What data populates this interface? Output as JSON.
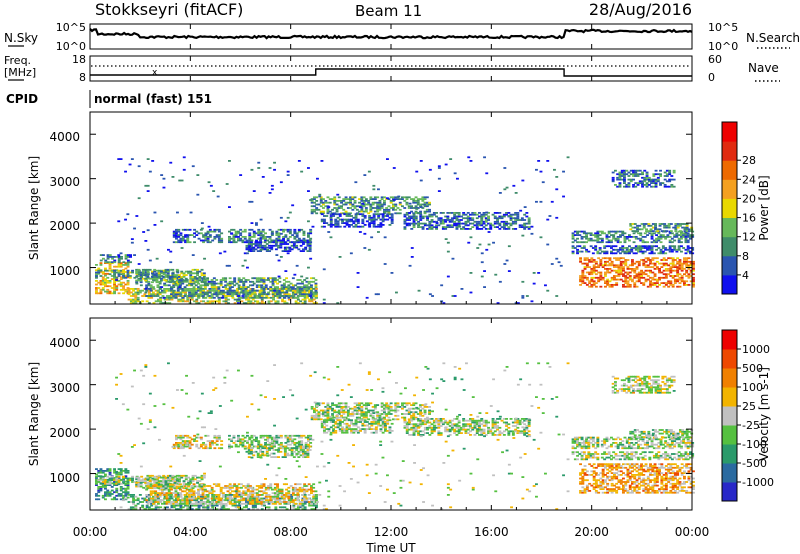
{
  "header": {
    "title": "Stokkseyri (fitACF)",
    "beam": "Beam 11",
    "date": "28/Aug/2016"
  },
  "nsky_panel": {
    "left_label": "N.Sky",
    "right_label": "N.Search",
    "left_ticks": [
      "10^5",
      "10^0"
    ],
    "right_ticks": [
      "10^5",
      "10^0"
    ]
  },
  "freq_panel": {
    "left_label_1": "Freq.",
    "left_label_2": "[MHz]",
    "right_label": "Nave",
    "left_ticks": [
      "18",
      "8"
    ],
    "right_ticks": [
      "60",
      "0"
    ]
  },
  "cpid": {
    "label": "CPID",
    "value": "normal (fast) 151"
  },
  "x_axis": {
    "label": "Time UT",
    "ticks": [
      "00:00",
      "04:00",
      "08:00",
      "12:00",
      "16:00",
      "20:00",
      "00:00"
    ]
  },
  "chart_data": [
    {
      "type": "heatmap",
      "panel": "power",
      "ylabel": "Slant Range [km]",
      "yticks": [
        "1000",
        "2000",
        "3000",
        "4000"
      ],
      "ylim": [
        180,
        4500
      ],
      "xlim": [
        0,
        24
      ],
      "colorbar": {
        "label": "Power [dB]",
        "ticks": [
          "4",
          "8",
          "12",
          "16",
          "20",
          "24",
          "28"
        ],
        "colors": [
          "#1010ee",
          "#2a55b0",
          "#3f8c6a",
          "#66b85a",
          "#e8d800",
          "#f4a020",
          "#ee6a00",
          "#e02a10",
          "#ee0000"
        ]
      },
      "bands": [
        {
          "t0": 0.2,
          "t1": 1.5,
          "r0": 400,
          "r1": 1100,
          "level": 0.55
        },
        {
          "t0": 0.2,
          "t1": 3.5,
          "r0": 750,
          "r1": 950,
          "level": 0.3
        },
        {
          "t0": 0.3,
          "t1": 1.6,
          "r0": 1100,
          "r1": 1300,
          "level": 0.25
        },
        {
          "t0": 1.5,
          "t1": 9.0,
          "r0": 180,
          "r1": 520,
          "level": 0.45
        },
        {
          "t0": 2.2,
          "t1": 9.0,
          "r0": 300,
          "r1": 750,
          "level": 0.3
        },
        {
          "t0": 1.8,
          "t1": 4.5,
          "r0": 650,
          "r1": 950,
          "level": 0.3
        },
        {
          "t0": 3.3,
          "t1": 5.2,
          "r0": 1550,
          "r1": 1850,
          "level": 0.2
        },
        {
          "t0": 5.5,
          "t1": 8.8,
          "r0": 1550,
          "r1": 1850,
          "level": 0.25
        },
        {
          "t0": 6.2,
          "t1": 8.8,
          "r0": 1350,
          "r1": 1600,
          "level": 0.15
        },
        {
          "t0": 8.8,
          "t1": 13.5,
          "r0": 2200,
          "r1": 2600,
          "level": 0.3
        },
        {
          "t0": 9.2,
          "t1": 12.0,
          "r0": 1900,
          "r1": 2200,
          "level": 0.15
        },
        {
          "t0": 12.5,
          "t1": 17.5,
          "r0": 1850,
          "r1": 2250,
          "level": 0.2
        },
        {
          "t0": 19.2,
          "t1": 24.0,
          "r0": 1550,
          "r1": 1800,
          "level": 0.25
        },
        {
          "t0": 19.2,
          "t1": 24.0,
          "r0": 1300,
          "r1": 1500,
          "level": 0.2
        },
        {
          "t0": 21.5,
          "t1": 24.0,
          "r0": 1800,
          "r1": 2000,
          "level": 0.3
        },
        {
          "t0": 20.8,
          "t1": 23.3,
          "r0": 2800,
          "r1": 3200,
          "level": 0.2
        },
        {
          "t0": 19.5,
          "t1": 24.0,
          "r0": 550,
          "r1": 1200,
          "level": 0.7
        },
        {
          "t0": 1.0,
          "t1": 19.0,
          "r0": 180,
          "r1": 3500,
          "level": 0.15,
          "sparse": true
        }
      ]
    },
    {
      "type": "heatmap",
      "panel": "velocity",
      "ylabel": "Slant Range [km]",
      "yticks": [
        "1000",
        "2000",
        "3000",
        "4000"
      ],
      "ylim": [
        180,
        4500
      ],
      "xlim": [
        0,
        24
      ],
      "colorbar": {
        "label": "Velocity [m s-1]",
        "ticks": [
          "1000",
          "500",
          "100",
          "25",
          "-25",
          "-100",
          "-500",
          "-1000"
        ],
        "colors": [
          "#2828c8",
          "#2a6aa0",
          "#2a9a6a",
          "#55c040",
          "#c0c0c0",
          "#f2b400",
          "#f08000",
          "#ee4800",
          "#ee0000"
        ]
      },
      "bands": [
        {
          "t0": 0.2,
          "t1": 1.5,
          "r0": 400,
          "r1": 1100,
          "level": 0.25
        },
        {
          "t0": 0.2,
          "t1": 3.5,
          "r0": 750,
          "r1": 950,
          "level": 0.45
        },
        {
          "t0": 1.5,
          "t1": 9.0,
          "r0": 180,
          "r1": 520,
          "level": 0.35
        },
        {
          "t0": 2.2,
          "t1": 9.0,
          "r0": 300,
          "r1": 750,
          "level": 0.55
        },
        {
          "t0": 1.8,
          "t1": 4.5,
          "r0": 650,
          "r1": 950,
          "level": 0.45
        },
        {
          "t0": 3.3,
          "t1": 5.2,
          "r0": 1550,
          "r1": 1850,
          "level": 0.55
        },
        {
          "t0": 5.5,
          "t1": 8.8,
          "r0": 1550,
          "r1": 1850,
          "level": 0.45
        },
        {
          "t0": 6.2,
          "t1": 8.8,
          "r0": 1350,
          "r1": 1600,
          "level": 0.45
        },
        {
          "t0": 8.8,
          "t1": 13.5,
          "r0": 2200,
          "r1": 2600,
          "level": 0.45
        },
        {
          "t0": 9.2,
          "t1": 12.0,
          "r0": 1900,
          "r1": 2200,
          "level": 0.45
        },
        {
          "t0": 12.5,
          "t1": 17.5,
          "r0": 1850,
          "r1": 2250,
          "level": 0.45
        },
        {
          "t0": 19.2,
          "t1": 24.0,
          "r0": 1550,
          "r1": 1800,
          "level": 0.45
        },
        {
          "t0": 19.2,
          "t1": 24.0,
          "r0": 1300,
          "r1": 1500,
          "level": 0.45
        },
        {
          "t0": 21.5,
          "t1": 24.0,
          "r0": 1800,
          "r1": 2000,
          "level": 0.45
        },
        {
          "t0": 20.8,
          "t1": 23.3,
          "r0": 2800,
          "r1": 3200,
          "level": 0.5
        },
        {
          "t0": 19.5,
          "t1": 24.0,
          "r0": 550,
          "r1": 1200,
          "level": 0.65
        },
        {
          "t0": 1.0,
          "t1": 19.0,
          "r0": 180,
          "r1": 3500,
          "level": 0.45,
          "sparse": true
        }
      ]
    }
  ]
}
